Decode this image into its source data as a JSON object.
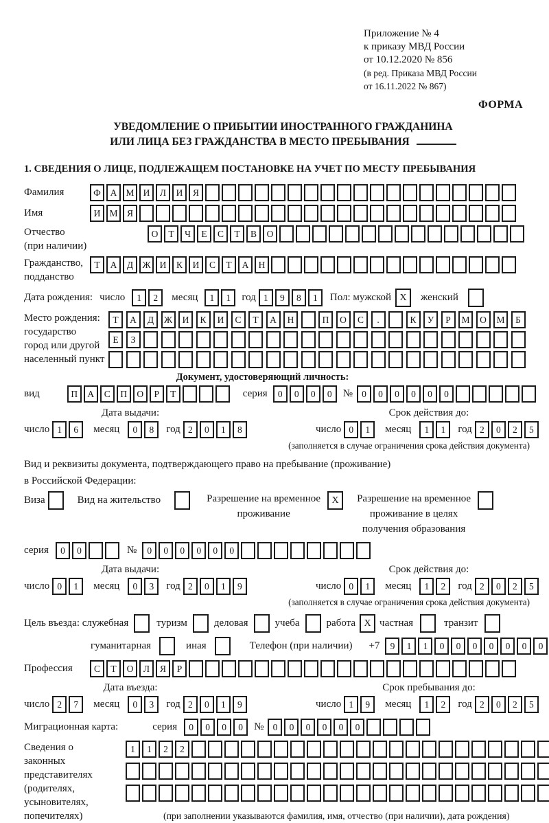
{
  "header": {
    "appendix": [
      "Приложение № 4",
      "к приказу МВД России",
      "от 10.12.2020 № 856"
    ],
    "appendix_note": [
      "(в ред. Приказа МВД России",
      "от 16.11.2022 № 867)"
    ],
    "forma_label": "ФОРМА"
  },
  "title": {
    "line1": "УВЕДОМЛЕНИЕ О ПРИБЫТИИ ИНОСТРАННОГО ГРАЖДАНИНА",
    "line2": "ИЛИ ЛИЦА БЕЗ ГРАЖДАНСТВА В МЕСТО ПРЕБЫВАНИЯ"
  },
  "section1_heading": "1. СВЕДЕНИЯ О ЛИЦЕ, ПОДЛЕЖАЩЕМ ПОСТАНОВКЕ НА УЧЕТ ПО МЕСТУ ПРЕБЫВАНИЯ",
  "labels": {
    "surname": "Фамилия",
    "name": "Имя",
    "patronymic": "Отчество",
    "patronymic_note": "(при наличии)",
    "citizenship_line1": "Гражданство,",
    "citizenship_line2": "подданство",
    "birth_date": "Дата рождения:",
    "day": "число",
    "month": "месяц",
    "year": "год",
    "sex": "Пол: мужской",
    "female": "женский",
    "birth_place_line1": "Место рождения:",
    "birth_place_line2": "государство",
    "birth_place_line3": "город или другой",
    "birth_place_line4": "населенный пункт",
    "identity_doc_heading": "Документ, удостоверяющий личность:",
    "doc_type": "вид",
    "series": "серия",
    "number_sign": "№",
    "issue_date": "Дата выдачи:",
    "valid_until": "Срок действия до:",
    "restriction_note": "(заполняется в случае ограничения срока действия документа)",
    "residence_doc_line1": "Вид и реквизиты документа, подтверждающего право на пребывание (проживание)",
    "residence_doc_line2": "в Российской Федерации:",
    "visa": "Виза",
    "residence_permit": "Вид на жительство",
    "temp_residence_line1": "Разрешение на временное",
    "temp_residence_line2": "проживание",
    "temp_residence_edu_line1": "Разрешение на временное",
    "temp_residence_edu_line2": "проживание в целях",
    "temp_residence_edu_line3": "получения образования",
    "entry_purpose": "Цель въезда: служебная",
    "purpose_tourism": "туризм",
    "purpose_business": "деловая",
    "purpose_study": "учеба",
    "purpose_work": "работа",
    "purpose_private": "частная",
    "purpose_transit": "транзит",
    "purpose_humanitarian": "гуманитарная",
    "purpose_other": "иная",
    "phone": "Телефон (при наличии)",
    "phone_prefix": "+7",
    "profession": "Профессия",
    "entry_date": "Дата въезда:",
    "stay_until": "Срок пребывания до:",
    "migration_card": "Миграционная карта:",
    "legal_reps_line1": "Сведения о",
    "legal_reps_line2": "законных",
    "legal_reps_line3": "представителях",
    "legal_reps_line4": "(родителях,",
    "legal_reps_line5": "усыновителях,",
    "legal_reps_line6": "попечителях)",
    "legal_reps_note": "(при заполнении указываются фамилия, имя, отчество (при наличии), дата рождения)"
  },
  "fields": {
    "surname": {
      "value": "ФАМИЛИЯ",
      "length": 26
    },
    "name": {
      "value": "ИМЯ",
      "length": 26
    },
    "patronymic": {
      "value": "ОТЧЕСТВО",
      "length": 23
    },
    "citizenship": {
      "value": "ТАДЖИКИСТАН",
      "length": 26
    },
    "birth_day": {
      "value": "12",
      "length": 2
    },
    "birth_month": {
      "value": "11",
      "length": 2
    },
    "birth_year": {
      "value": "1981",
      "length": 4
    },
    "sex_male": {
      "value": "X",
      "length": 1
    },
    "sex_female": {
      "value": "",
      "length": 1
    },
    "birth_place_row1": {
      "value": "ТАДЖИКИСТАН ПОС. КУРМОМБ",
      "length": 24
    },
    "birth_place_row2": {
      "value": "ЕЗ",
      "length": 24
    },
    "birth_place_row3": {
      "value": "",
      "length": 24
    },
    "doc_type": {
      "value": "ПАСПОРТ",
      "length": 10
    },
    "doc_series": {
      "value": "0000",
      "length": 4
    },
    "doc_number": {
      "value": "000000",
      "length": 11
    },
    "doc_issue_day": {
      "value": "16",
      "length": 2
    },
    "doc_issue_month": {
      "value": "08",
      "length": 2
    },
    "doc_issue_year": {
      "value": "2018",
      "length": 4
    },
    "doc_valid_day": {
      "value": "01",
      "length": 2
    },
    "doc_valid_month": {
      "value": "11",
      "length": 2
    },
    "doc_valid_year": {
      "value": "2025",
      "length": 4
    },
    "visa_checkbox": {
      "value": "",
      "length": 1
    },
    "residence_permit_checkbox": {
      "value": "",
      "length": 1
    },
    "temp_residence_checkbox": {
      "value": "X",
      "length": 1
    },
    "temp_residence_edu_checkbox": {
      "value": "",
      "length": 1
    },
    "res_series": {
      "value": "00",
      "length": 4
    },
    "res_number": {
      "value": "000000",
      "length": 14
    },
    "res_issue_day": {
      "value": "01",
      "length": 2
    },
    "res_issue_month": {
      "value": "03",
      "length": 2
    },
    "res_issue_year": {
      "value": "2019",
      "length": 4
    },
    "res_valid_day": {
      "value": "01",
      "length": 2
    },
    "res_valid_month": {
      "value": "12",
      "length": 2
    },
    "res_valid_year": {
      "value": "2025",
      "length": 4
    },
    "purpose_official": {
      "value": "",
      "length": 1
    },
    "purpose_tourism": {
      "value": "",
      "length": 1
    },
    "purpose_business": {
      "value": "",
      "length": 1
    },
    "purpose_study": {
      "value": "",
      "length": 1
    },
    "purpose_work": {
      "value": "X",
      "length": 1
    },
    "purpose_private": {
      "value": "",
      "length": 1
    },
    "purpose_transit": {
      "value": "",
      "length": 1
    },
    "purpose_humanitarian": {
      "value": "",
      "length": 1
    },
    "purpose_other": {
      "value": "",
      "length": 1
    },
    "phone": {
      "value": "9110000000",
      "length": 11
    },
    "profession": {
      "value": "СТОЛЯР",
      "length": 26
    },
    "entry_day": {
      "value": "27",
      "length": 2
    },
    "entry_month": {
      "value": "03",
      "length": 2
    },
    "entry_year": {
      "value": "2019",
      "length": 4
    },
    "stay_day": {
      "value": "19",
      "length": 2
    },
    "stay_month": {
      "value": "12",
      "length": 2
    },
    "stay_year": {
      "value": "2025",
      "length": 4
    },
    "mig_series": {
      "value": "0000",
      "length": 4
    },
    "mig_number": {
      "value": "000000",
      "length": 10
    },
    "reps_row1": {
      "value": "1122",
      "length": 26
    },
    "reps_row2": {
      "value": "",
      "length": 26
    },
    "reps_row3": {
      "value": "",
      "length": 26
    }
  }
}
